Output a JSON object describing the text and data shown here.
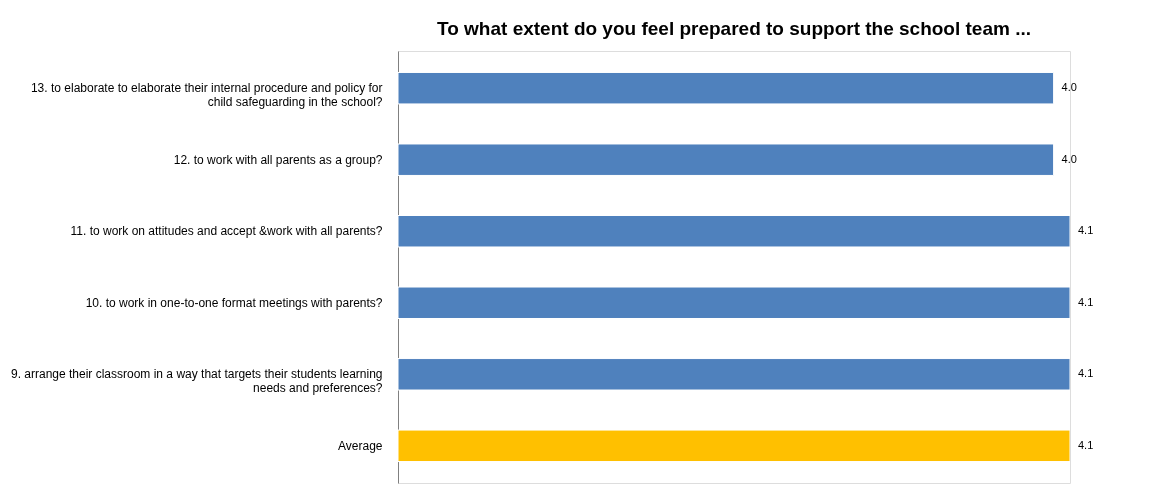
{
  "chart_data": {
    "type": "bar",
    "orientation": "horizontal",
    "title": "To what extent do you feel prepared to  support the school team ...",
    "categories": [
      "13. to elaborate to elaborate their internal procedure and policy for child safeguarding in the school?",
      "12. to work with all parents as a group?",
      "11. to work on attitudes and accept &work with all parents?",
      "10. to work in one-to-one format meetings with parents?",
      "9. arrange their classroom in a way that targets their students learning needs and preferences?",
      "Average"
    ],
    "values": [
      4.0,
      4.0,
      4.1,
      4.1,
      4.1,
      4.1
    ],
    "value_labels": [
      "4.0",
      "4.0",
      "4.1",
      "4.1",
      "4.1",
      "4.1"
    ],
    "tick_labels": "y",
    "colors": [
      "#4f81bd",
      "#4f81bd",
      "#4f81bd",
      "#4f81bd",
      "#4f81bd",
      "#ffc000"
    ],
    "grid": false,
    "legend": false
  }
}
